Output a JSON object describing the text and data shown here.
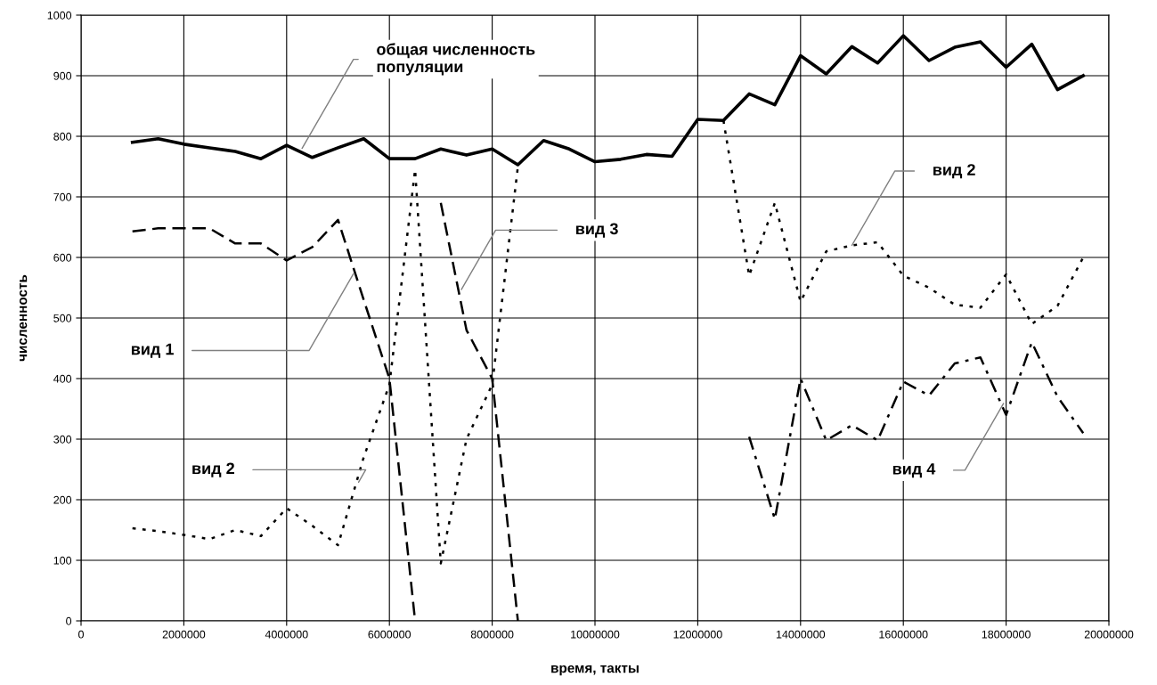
{
  "chart_data": {
    "type": "line",
    "xlabel": "время, такты",
    "ylabel": "численность",
    "x": [
      1000000,
      1500000,
      2000000,
      2500000,
      3000000,
      3500000,
      4000000,
      4500000,
      5000000,
      5500000,
      6000000,
      6500000,
      7000000,
      7500000,
      8000000,
      8500000,
      9000000,
      9500000,
      10000000,
      10500000,
      11000000,
      11500000,
      12000000,
      12500000,
      13000000,
      13500000,
      14000000,
      14500000,
      15000000,
      15500000,
      16000000,
      16500000,
      17000000,
      17500000,
      18000000,
      18500000,
      19000000,
      19500000
    ],
    "series": [
      {
        "color": "#000000",
        "line_style": "solid",
        "values": [
          790,
          796,
          787,
          781,
          775,
          763,
          785,
          765,
          781,
          796,
          763,
          763,
          779,
          769,
          779,
          753,
          793,
          779,
          758,
          762,
          770,
          767,
          828,
          826,
          870,
          852,
          933,
          903,
          948,
          921,
          966,
          925,
          947,
          956,
          914,
          952,
          877,
          900
        ]
      },
      {
        "color": "#000000",
        "line_style": "dashed",
        "values": [
          643,
          648,
          648,
          648,
          623,
          623,
          595,
          617,
          662,
          530,
          400,
          0,
          null,
          null,
          null,
          null,
          null,
          null,
          null,
          null,
          null,
          null,
          null,
          null,
          null,
          null,
          null,
          null,
          null,
          null,
          null,
          null,
          null,
          null,
          null,
          null,
          null,
          null
        ]
      },
      {
        "color": "#000000",
        "line_style": "dotted",
        "values": [
          153,
          148,
          142,
          135,
          150,
          140,
          186,
          157,
          125,
          270,
          390,
          745,
          95,
          300,
          390,
          750,
          null,
          null,
          null,
          null,
          null,
          null,
          null,
          826,
          570,
          690,
          527,
          610,
          620,
          625,
          570,
          550,
          522,
          517,
          572,
          490,
          520,
          600
        ]
      },
      {
        "color": "#000000",
        "line_style": "dashed",
        "values": [
          null,
          null,
          null,
          null,
          null,
          null,
          null,
          null,
          null,
          null,
          null,
          null,
          690,
          480,
          400,
          0,
          null,
          null,
          null,
          null,
          null,
          null,
          null,
          null,
          null,
          null,
          null,
          null,
          null,
          null,
          null,
          null,
          null,
          null,
          null,
          null,
          null,
          null
        ]
      },
      {
        "color": "#000000",
        "line_style": "dashdot",
        "values": [
          null,
          null,
          null,
          null,
          null,
          null,
          null,
          null,
          null,
          null,
          null,
          null,
          null,
          null,
          null,
          null,
          null,
          null,
          null,
          null,
          null,
          null,
          null,
          null,
          304,
          168,
          400,
          298,
          323,
          298,
          395,
          372,
          425,
          435,
          340,
          460,
          370,
          310
        ]
      }
    ],
    "xlim": [
      0,
      20000000
    ],
    "xticks": [
      0,
      2000000,
      4000000,
      6000000,
      8000000,
      10000000,
      12000000,
      14000000,
      16000000,
      18000000,
      20000000
    ],
    "ylim": [
      0,
      1000
    ],
    "yticks": [
      0,
      100,
      200,
      300,
      400,
      500,
      600,
      700,
      800,
      900,
      1000
    ],
    "grid": true,
    "legend": false,
    "annotations": [
      {
        "text": "общая численность\nпопуляции",
        "x": 4300000,
        "y": 780
      },
      {
        "text": "вид 1",
        "x": 5300000,
        "y": 573
      },
      {
        "text": "вид 2",
        "x": 5400000,
        "y": 229
      },
      {
        "text": "вид 3",
        "x": 7400000,
        "y": 547
      },
      {
        "text": "вид 2",
        "x": 15000000,
        "y": 620
      },
      {
        "text": "вид 4",
        "x": 17950000,
        "y": 359
      }
    ]
  }
}
